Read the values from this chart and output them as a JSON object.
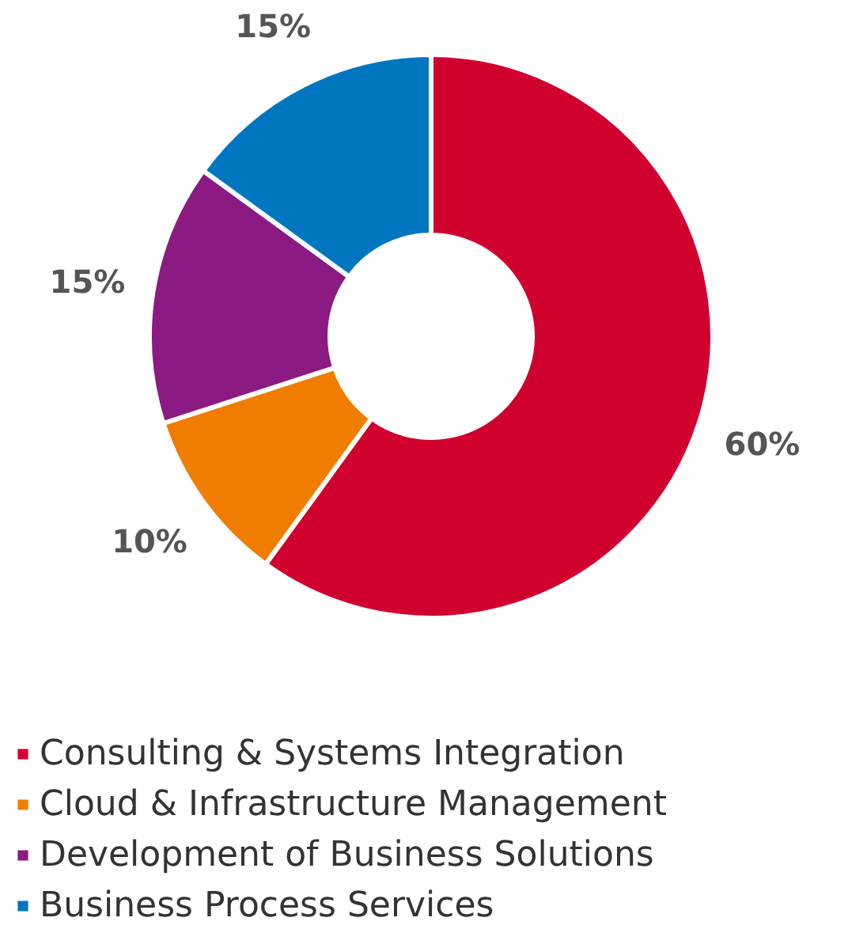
{
  "chart_data": {
    "type": "donut",
    "categories": [
      "Consulting & Systems Integration",
      "Cloud & Infrastructure Management",
      "Development of Business Solutions",
      "Business Process Services"
    ],
    "values": [
      60,
      10,
      15,
      15
    ],
    "colors": [
      "#d0002f",
      "#f07d00",
      "#8b1a82",
      "#0076c0"
    ],
    "value_labels": [
      "60%",
      "10%",
      "15%",
      "15%"
    ],
    "legend": "bottom"
  }
}
